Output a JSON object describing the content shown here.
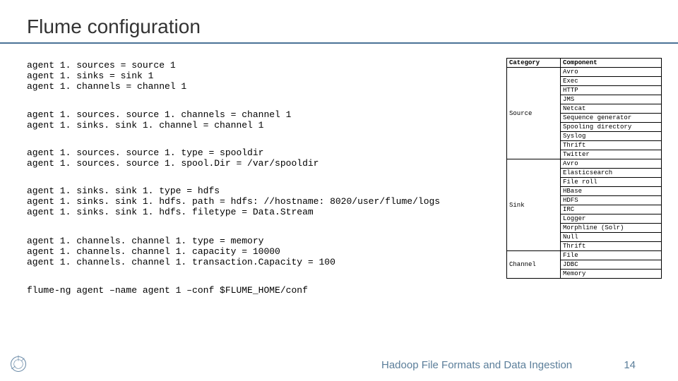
{
  "title": "Flume configuration",
  "config": {
    "block1": "agent 1. sources = source 1\nagent 1. sinks = sink 1\nagent 1. channels = channel 1",
    "block2": "agent 1. sources. source 1. channels = channel 1\nagent 1. sinks. sink 1. channel = channel 1",
    "block3": "agent 1. sources. source 1. type = spooldir\nagent 1. sources. source 1. spool.Dir = /var/spooldir",
    "block4": "agent 1. sinks. sink 1. type = hdfs\nagent 1. sinks. sink 1. hdfs. path = hdfs: //hostname: 8020/user/flume/logs\nagent 1. sinks. sink 1. hdfs. filetype = Data.Stream",
    "block5": "agent 1. channels. channel 1. type = memory\nagent 1. channels. channel 1. capacity = 10000\nagent 1. channels. channel 1. transaction.Capacity = 100",
    "block6": "flume-ng agent –name agent 1 –conf $FLUME_HOME/conf"
  },
  "table": {
    "header_category": "Category",
    "header_component": "Component",
    "rows": [
      {
        "category": "Source",
        "span": 10,
        "components": [
          "Avro",
          "Exec",
          "HTTP",
          "JMS",
          "Netcat",
          "Sequence generator",
          "Spooling directory",
          "Syslog",
          "Thrift",
          "Twitter"
        ]
      },
      {
        "category": "Sink",
        "span": 10,
        "components": [
          "Avro",
          "Elasticsearch",
          "File roll",
          "HBase",
          "HDFS",
          "IRC",
          "Logger",
          "Morphline (Solr)",
          "Null",
          "Thrift"
        ]
      },
      {
        "category": "Channel",
        "span": 3,
        "components": [
          "File",
          "JDBC",
          "Memory"
        ]
      }
    ]
  },
  "footer": {
    "text": "Hadoop File Formats and Data Ingestion",
    "page": "14"
  },
  "colors": {
    "accent": "#4a7296",
    "text": "#333333",
    "footer": "#5b7e9a",
    "border": "#000000"
  }
}
